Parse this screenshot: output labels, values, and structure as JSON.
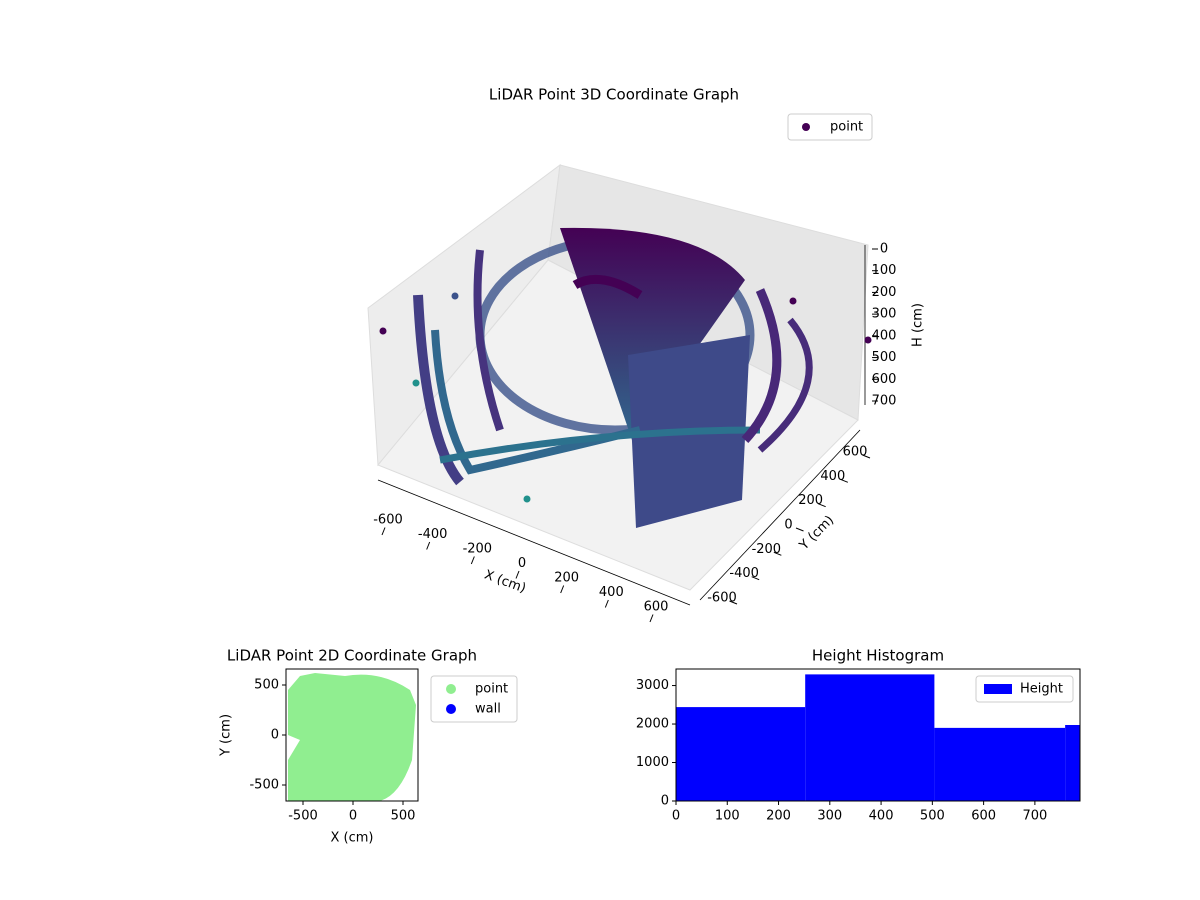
{
  "chart_data": [
    {
      "type": "scatter3d",
      "title": "LiDAR Point 3D Coordinate Graph",
      "xlabel": "X (cm)",
      "ylabel": "Y (cm)",
      "zlabel": "H (cm)",
      "series": [
        {
          "name": "point",
          "color": "#440154"
        }
      ],
      "xticks": [
        -600,
        -400,
        -200,
        0,
        200,
        400,
        600
      ],
      "yticks": [
        -600,
        -400,
        -200,
        0,
        200,
        400,
        600
      ],
      "zticks": [
        0,
        100,
        200,
        300,
        400,
        500,
        600,
        700
      ],
      "legend": "upper right"
    },
    {
      "type": "scatter",
      "title": "LiDAR Point 2D Coordinate Graph",
      "xlabel": "X (cm)",
      "ylabel": "Y (cm)",
      "series": [
        {
          "name": "point",
          "color": "#90ee90"
        },
        {
          "name": "wall",
          "color": "#0000ff"
        }
      ],
      "xlim": [
        -670,
        650
      ],
      "ylim": [
        -660,
        660
      ],
      "xticks": [
        -500,
        0,
        500
      ],
      "yticks": [
        -500,
        0,
        500
      ],
      "legend": "outside right"
    },
    {
      "type": "histogram",
      "title": "Height Histogram",
      "bins": [
        0,
        252,
        504,
        759,
        788
      ],
      "counts": [
        2440,
        3290,
        1900,
        1975
      ],
      "series_name": "Height",
      "color": "#0000ff",
      "xlim": [
        0,
        788
      ],
      "ylim": [
        0,
        3430
      ],
      "xticks": [
        0,
        100,
        200,
        300,
        400,
        500,
        600,
        700
      ],
      "yticks": [
        0,
        1000,
        2000,
        3000
      ],
      "legend": "upper right"
    }
  ]
}
